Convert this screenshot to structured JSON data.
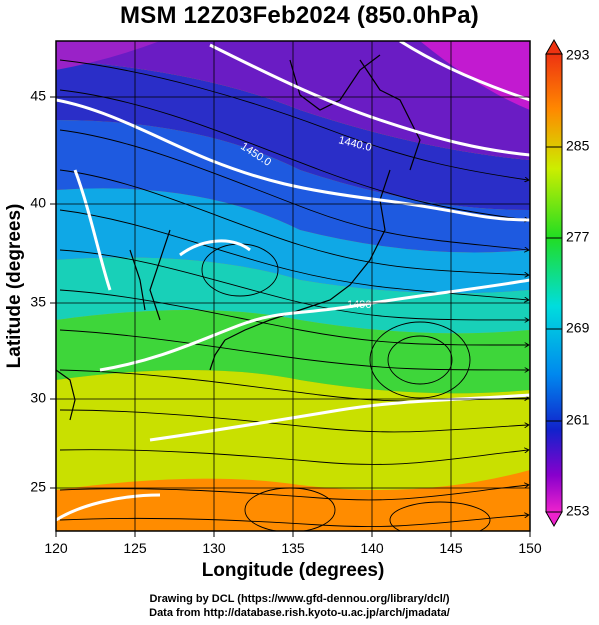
{
  "title": "MSM 12Z03Feb2024 (850.0hPa)",
  "map": {
    "x_label": "Longitude (degrees)",
    "y_label": "Latitude (degrees)",
    "lon_range": [
      120,
      150
    ],
    "lat_range": [
      22.4,
      47.6
    ],
    "x_ticks": [
      "120",
      "125",
      "130",
      "135",
      "140",
      "145",
      "150"
    ],
    "y_ticks": [
      "25",
      "30",
      "35",
      "40",
      "45"
    ],
    "field": "temperature (K) with streamlines and geopotential height contours"
  },
  "colorbar": {
    "min": 253,
    "max": 293,
    "labels": [
      "293",
      "285",
      "277",
      "269",
      "261",
      "253"
    ]
  },
  "contours": [
    {
      "label": "1450.0",
      "color": "#ffffff"
    },
    {
      "label": "1440.0",
      "color": "#ffffff"
    },
    {
      "label": "1490",
      "color": "#ffffff"
    }
  ],
  "credits": {
    "line1": "Drawing by DCL (https://www.gfd-dennou.org/library/dcl/)",
    "line2": "Data from http://database.rish.kyoto-u.ac.jp/arch/jmadata/"
  }
}
